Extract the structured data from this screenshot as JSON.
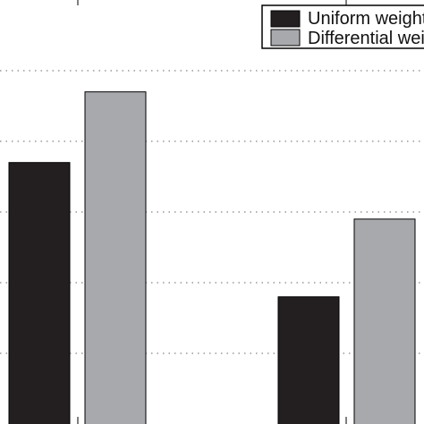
{
  "chart_data": {
    "type": "bar",
    "categories": [
      "",
      ""
    ],
    "series": [
      {
        "name": "Uniform weighti",
        "color": "#231f20",
        "values": [
          3.7,
          1.8
        ]
      },
      {
        "name": "Differential weig",
        "color": "#a7a9ac",
        "values": [
          4.7,
          2.9
        ]
      }
    ],
    "ylim": [
      0,
      6
    ],
    "yticks": [
      1,
      2,
      3,
      4,
      5
    ],
    "grid": true,
    "grid_style": "dotted horizontal",
    "legend_position": "top-right",
    "title": "",
    "xlabel": "",
    "ylabel": ""
  }
}
